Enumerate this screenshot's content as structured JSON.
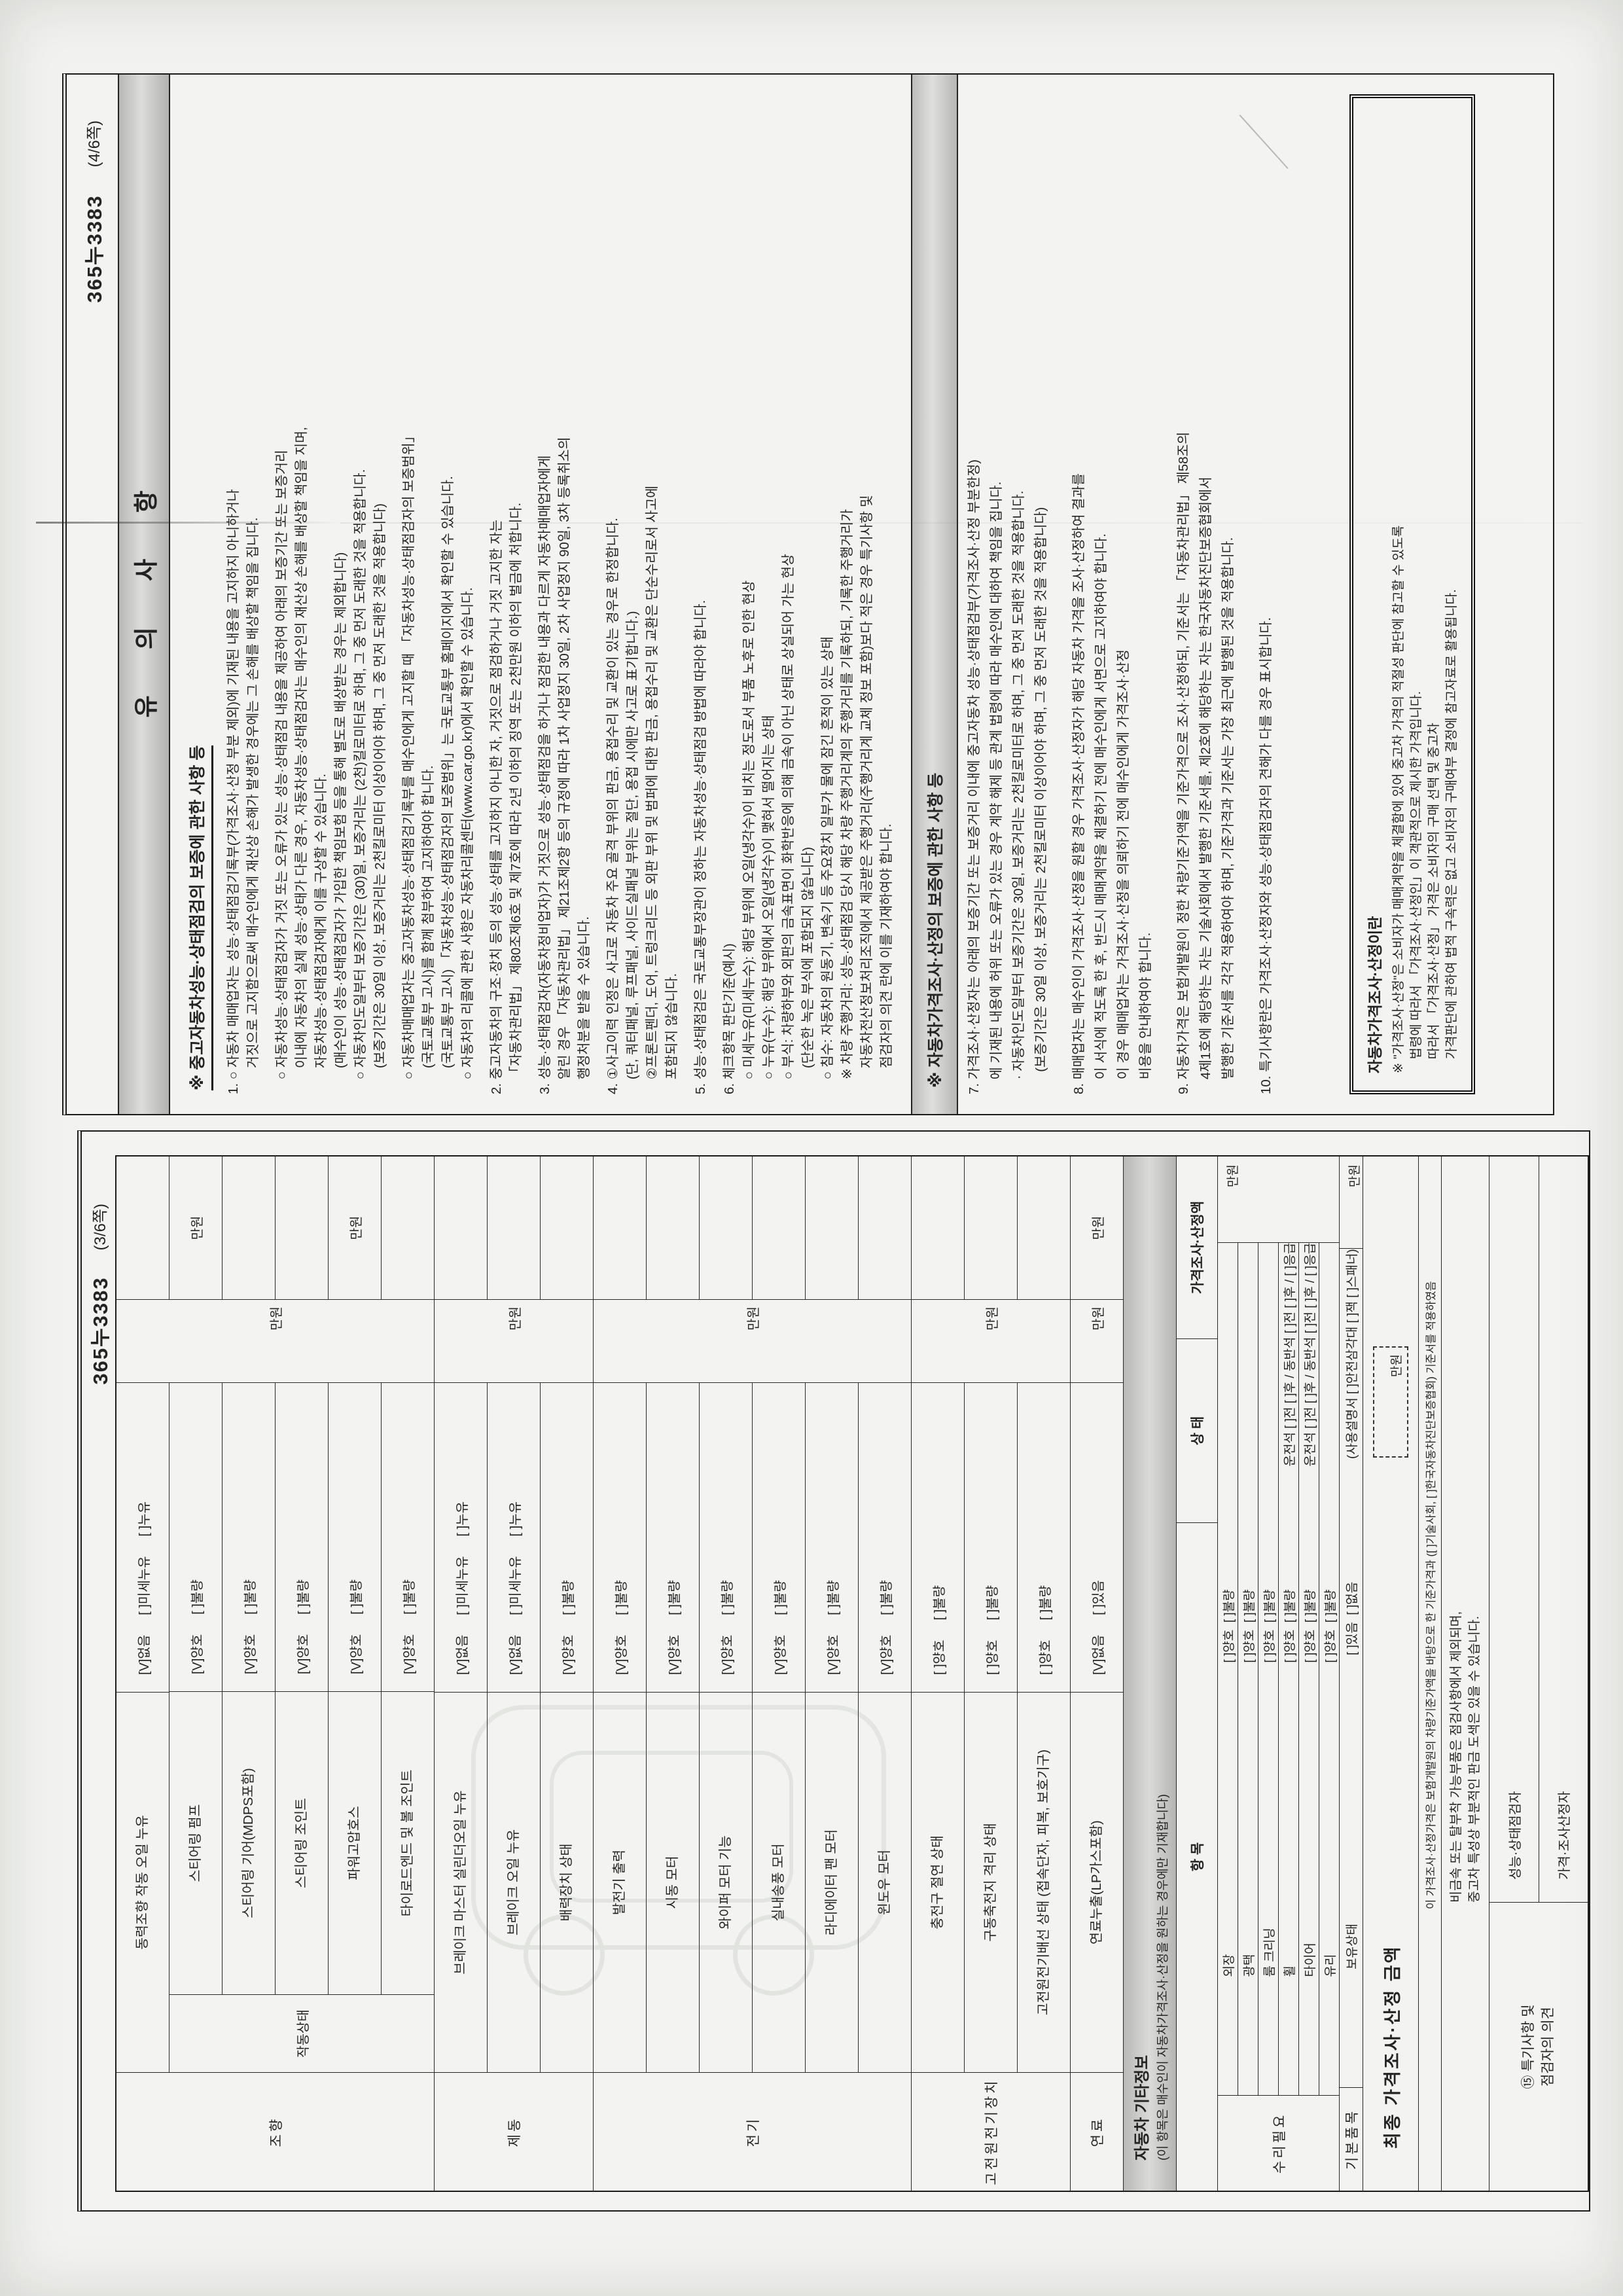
{
  "checkbox": {
    "checked": "[V]",
    "empty": "[ ]"
  },
  "unit": "만원",
  "page4": {
    "doc_no": "365누3383",
    "page_no": "(4/6쪽)",
    "title": "유 의 사 항",
    "section1_header": "※ 중고자동차성능·상태점검의 보증에 관한 사항 등",
    "lines1": [
      "1. ○ 자동차 매매업자는 성능·상태점검기록부(가격조사·산정 부분 제외)에 기재된 내용을 고지하지 아니하거나",
      "       거짓으로 고지함으로써 매수인에게 재산상 손해가 발생한 경우에는 그 손해를 배상할 책임을 집니다.",
      "    ○ 자동차성능·상태점검자가 거짓 또는 오류가 있는 성능·상태점검 내용을 제공하여 아래의 보증기간 또는 보증거리",
      "       이내에 자동차의 실제 성능·상태가 다른 경우, 자동차성능·상태점검자는 매수인의 재산상 손해를 배상할 책임을 지며,",
      "       자동차성능·상태점검자에게 이를 구상할 수 있습니다.",
      "       (매수인이 성능·상태점검자가 가입한 책임보험 등을 통해 별도로 배상받는 경우는 제외합니다)",
      "    ○ 자동차인도일부터 보증기간은 (30)일, 보증거리는 (2천)킬로미터로 하며, 그 중 먼저 도래한 것을 적용합니다.",
      "       (보증기간은 30일 이상, 보증거리는 2천킬로미터 이상이어야 하며, 그 중 먼저 도래한 것을 적용합니다)",
      "    ○ 자동차매매업자는 중고자동차성능·상태점검기록부를 매수인에게 고지할 때 「자동차성능·상태점검자의 보증범위」",
      "       (국토교통부 고시)를 함께 첨부하여 고지하여야 합니다.",
      "       (국토교통부 고시) 「자동차성능·상태점검자의 보증범위」는 국토교통부 홈페이지에서 확인할 수 있습니다.",
      "    ○ 자동차의 리콜에 관한 사항은 자동차리콜센터(www.car.go.kr)에서 확인할 수 있습니다.",
      "2. 중고자동차의 구조·장치 등의 성능·상태를 고지하지 아니한 자, 거짓으로 점검하거나 거짓 고지한 자는",
      "    「자동차관리법」 제80조제6호 및 제7호에 따라 2년 이하의 징역 또는 2천만원 이하의 벌금에 처합니다.",
      "3. 성능·상태점검자(자동차정비업자)가 거짓으로 성능·상태점검을 하거나 점검한 내용과 다르게 자동차매매업자에게",
      "    알린 경우 「자동차관리법」 제21조제2항 등의 규정에 따라 1차 사업정지 30일, 2차 사업정지 90일, 3차 등록취소의",
      "    행정처분을 받을 수 있습니다.",
      "4. ①사고이력 인정은 사고로 자동차 주요 골격 부위의 판금, 용접수리 및 교환이 있는 경우로 한정합니다.",
      "    (단, 쿼터패널, 루프패널, 사이드실패널 부위는 절단, 용접 시에만 사고로 표기합니다.)",
      "    ②프론트펜더, 도어, 트렁크리드 등 외판 부위 및 범퍼에 대한 판금, 용접수리 및 교환은 단순수리로서 사고에",
      "    포함되지 않습니다.",
      "5. 성능·상태점검은 국토교통부장관이 정하는 자동차성능·상태점검 방법에 따라야 합니다.",
      "6. 체크항목 판단기준(예시)",
      "    ○ 미세누유(미세누수): 해당 부위에 오일(냉각수)이 비치는 정도로서 부품 노후로 인한 현상",
      "    ○ 누유(누수): 해당 부위에서 오일(냉각수)이 맺혀서 떨어지는 상태",
      "    ○ 부식: 차량하부와 외판의 금속표면이 화학반응에 의해 금속이 아닌 상태로 상실되어 가는 현상",
      "       (단순한 녹은 부식에 포함되지 않습니다)",
      "    ○ 침수: 자동차의 원동기, 변속기 등 주요장치 일부가 물에 잠긴 흔적이 있는 상태",
      "    ※ 차량 주행거리: 성능·상태점검 당시 해당 차량 주행거리계의 주행거리를 기록하되, 기록한 주행거리가",
      "       자동차전산정보처리조직에서 제공받은 주행거리(주행거리계 교체 정보 포함)보다 적은 경우 특기사항 및",
      "       점검자의 의견 란에 이를 기재하여야 합니다."
    ],
    "section2_header": "※ 자동차가격조사·산정의 보증에 관한 사항 등",
    "lines2": [
      "7. 가격조사·산정자는 아래의 보증기간 또는 보증거리 이내에 중고자동차 성능·상태점검부(가격조사·산정 부분한정)",
      "    에 기재된 내용에 허위 또는 오류가 있는 경우 계약 해제 등 관계 법령에 따라 매수인에 대하여 책임을 집니다.",
      "    · 자동차인도일부터 보증기간은 30일, 보증거리는 2천킬로미터로 하며, 그 중 먼저 도래한 것을 적용합니다.",
      "      (보증기간은 30일 이상, 보증거리는 2천킬로미터 이상이어야 하며, 그 중 먼저 도래한 것을 적용합니다)",
      "8. 매매업자는 매수인이 가격조사·산정을 원할 경우 가격조사·산정자가 해당 자동차 가격을 조사·산정하여 결과를",
      "    이 서식에 적도록 한 후, 반드시 매매계약을 체결하기 전에 매수인에게 서면으로 고지하여야 합니다.",
      "    이 경우 매매업자는 가격조사·산정을 의뢰하기 전에 매수인에게 가격조사·산정",
      "    비용을 안내하여야 합니다.",
      "9. 자동차가격은 보험개발원이 정한 차량기준가액을 기준가격으로 조사·산정하되, 기준서는 「자동차관리법」 제58조의",
      "    4제1호에 해당하는 자는 기술사회에서 발행한 기준서를, 제2호에 해당하는 자는 한국자동차진단보증협회에서",
      "    발행한 기준서를 각각 적용하여야 하며, 기준가격과 기준서는 가장 최근에 발행된 것을 적용합니다.",
      "10. 특기사항란은 가격조사·산정자와 성능·상태점검자의 견해가 다를 경우 표시합니다."
    ],
    "box": {
      "title": "자동차가격조사·산정이란",
      "lines": [
        "※ \"가격조사·산정\"은 소비자가 매매계약을 체결함에 있어 중고차 가격의 적절성 판단에 참고할 수 있도록",
        "    법령에 따라서 「가격조사·산정인」이 객관적으로 제시한 가격입니다.",
        "    따라서 「가격조사·산정」 가격은 소비자의 구매 선택 및 중고차",
        "    가격판단에 관하여 법적 구속력은 없고 소비자의 구매여부 결정에 참고자료로 활용됩니다."
      ]
    }
  },
  "page3": {
    "doc_no": "365누3383",
    "page_no": "(3/6쪽)",
    "sub_label": "작동상태",
    "groups": [
      {
        "name": "조향",
        "rows": [
          {
            "label": "동력조향 작동 오일 누유",
            "status": [
              [
                "없음",
                true
              ],
              [
                "미세누유",
                false
              ],
              [
                "누유",
                false
              ]
            ]
          },
          {
            "label": "스티어링 펌프",
            "sub": true,
            "status": [
              [
                "양호",
                true
              ],
              [
                "불량",
                false
              ]
            ],
            "amt_b": true
          },
          {
            "label": "스티어링 기어(MDPS포함)",
            "sub": true,
            "status": [
              [
                "양호",
                true
              ],
              [
                "불량",
                false
              ]
            ]
          },
          {
            "label": "스티어링 조인트",
            "sub": true,
            "status": [
              [
                "양호",
                true
              ],
              [
                "불량",
                false
              ]
            ]
          },
          {
            "label": "파워고압호스",
            "sub": true,
            "status": [
              [
                "양호",
                true
              ],
              [
                "불량",
                false
              ]
            ],
            "amt_b": true
          },
          {
            "label": "타이로드엔드 및 볼 조인트",
            "sub": true,
            "status": [
              [
                "양호",
                true
              ],
              [
                "불량",
                false
              ]
            ]
          }
        ]
      },
      {
        "name": "제동",
        "rows": [
          {
            "label": "브레이크 마스터 실린더오일 누유",
            "status": [
              [
                "없음",
                true
              ],
              [
                "미세누유",
                false
              ],
              [
                "누유",
                false
              ]
            ]
          },
          {
            "label": "브레이크 오일 누유",
            "status": [
              [
                "없음",
                true
              ],
              [
                "미세누유",
                false
              ],
              [
                "누유",
                false
              ]
            ]
          },
          {
            "label": "배력장치 상태",
            "status": [
              [
                "양호",
                true
              ],
              [
                "불량",
                false
              ]
            ]
          }
        ]
      },
      {
        "name": "전기",
        "rows": [
          {
            "label": "발전기 출력",
            "status": [
              [
                "양호",
                true
              ],
              [
                "불량",
                false
              ]
            ]
          },
          {
            "label": "시동 모터",
            "status": [
              [
                "양호",
                true
              ],
              [
                "불량",
                false
              ]
            ]
          },
          {
            "label": "와이퍼 모터 기능",
            "status": [
              [
                "양호",
                true
              ],
              [
                "불량",
                false
              ]
            ]
          },
          {
            "label": "실내송풍 모터",
            "status": [
              [
                "양호",
                true
              ],
              [
                "불량",
                false
              ]
            ]
          },
          {
            "label": "라디에이터 팬 모터",
            "status": [
              [
                "양호",
                true
              ],
              [
                "불량",
                false
              ]
            ]
          },
          {
            "label": "윈도우 모터",
            "status": [
              [
                "양호",
                true
              ],
              [
                "불량",
                false
              ]
            ]
          }
        ]
      },
      {
        "name": "고전원전기장치",
        "rows": [
          {
            "label": "충전구 절연 상태",
            "status": [
              [
                "양호",
                false
              ],
              [
                "불량",
                false
              ]
            ]
          },
          {
            "label": "구동축전지 격리 상태",
            "status": [
              [
                "양호",
                false
              ],
              [
                "불량",
                false
              ]
            ]
          },
          {
            "label": "고전원전기배선 상태 (접속단자, 피복, 보호기구)",
            "status": [
              [
                "양호",
                false
              ],
              [
                "불량",
                false
              ]
            ]
          }
        ]
      },
      {
        "name": "연료",
        "rows": [
          {
            "label": "연료누출(LP가스포함)",
            "status": [
              [
                "없음",
                true
              ],
              [
                "있음",
                false
              ]
            ],
            "amt_b": true
          }
        ]
      }
    ],
    "other": {
      "header": "자동차 기타정보",
      "note": "(이 항목은 매수인이 자동차가격조사·산정을 원하는 경우에만 기재합니다)",
      "col_item": "항 목",
      "col_status": "상 태",
      "col_amount": "가격조사·산정액",
      "repair_group": "수리필요",
      "rows": [
        {
          "label": "외장",
          "status": "[ ]양호  [ ]불량",
          "extra": ""
        },
        {
          "label": "광택",
          "status": "[ ]양호  [ ]불량",
          "extra": ""
        },
        {
          "label": "룸 크리닝",
          "status": "[ ]양호  [ ]불량",
          "extra": ""
        },
        {
          "label": "휠",
          "status": "[ ]양호  [ ]불량",
          "extra": "운전석 [ ]전 [ ]후 / 동반석 [ ]전 [ ]후 / [ ]응급"
        },
        {
          "label": "타이어",
          "status": "[ ]양호  [ ]불량",
          "extra": "운전석 [ ]전 [ ]후 / 동반석 [ ]전 [ ]후 / [ ]응급"
        },
        {
          "label": "유리",
          "status": "[ ]양호  [ ]불량",
          "extra": ""
        }
      ],
      "basic_group": "기본품목",
      "basic_row": {
        "label": "보유상태",
        "status": "[ ]있음  [ ]없음",
        "extra": "(사용설명서 [ ]안전삼각대 [ ]잭 [ ]스패너)"
      }
    },
    "final_label": "최종 가격조사·산정 금액",
    "stamp_line": "이 가격조사·산정가격은 보험개발원의 차량기준가액을 바탕으로 한 기준가격과 ([ ]기술사회, [ ]한국자동차진단보증협회) 기준서를 적용하였음",
    "notes": [
      "비금속 또는 탈부착 가능부품은 점검사항에서 제외되며,",
      "중고차 특성상 부분적인 판금 도색은 있을 수 있습니다."
    ],
    "opinion": {
      "label_l1": "⑮ 특기사항 및",
      "label_l2": "점검자의 의견",
      "rows": [
        "성능·상태점검자",
        "가격·조사산정자"
      ]
    }
  }
}
